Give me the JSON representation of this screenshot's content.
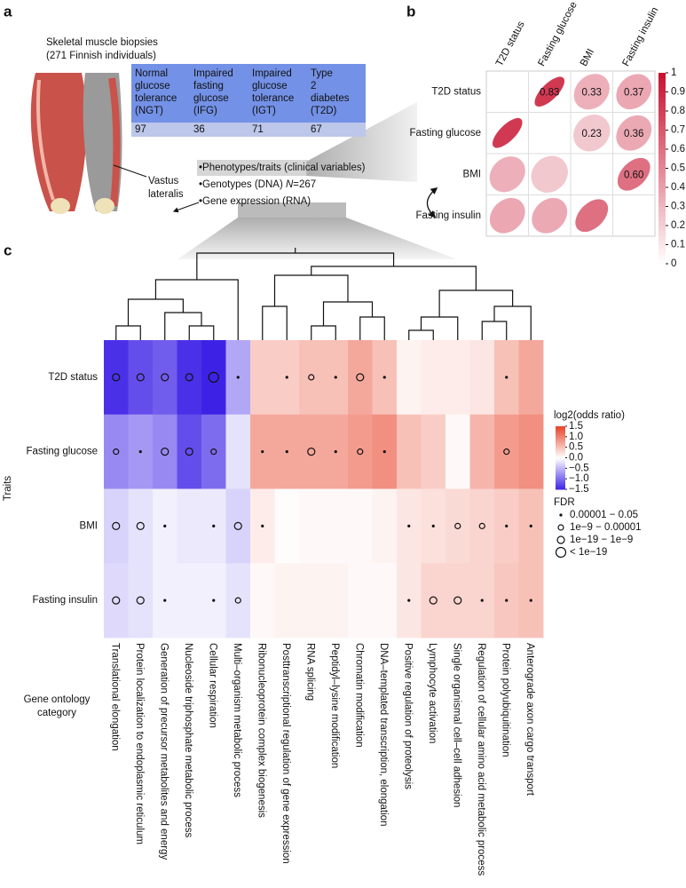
{
  "panel_labels": [
    "a",
    "b",
    "c"
  ],
  "panel_a": {
    "title_lines": [
      "Skeletal muscle biopsies",
      "(271 Finnish individuals)"
    ],
    "table": {
      "header": [
        [
          "Normal",
          "glucose",
          "tolerance",
          "(NGT)"
        ],
        [
          "Impaired",
          "fasting",
          "glucose",
          "(IFG)"
        ],
        [
          "Impaired",
          "glucose",
          "tolerance",
          "(IGT)"
        ],
        [
          "Type",
          "2",
          "diabetes",
          "(T2D)"
        ]
      ],
      "values": [
        97,
        36,
        71,
        67
      ]
    },
    "muscle_label": [
      "Vastus",
      "lateralis"
    ],
    "bullets": [
      {
        "text": "•Phenotypes/traits (clinical variables)"
      },
      {
        "text": "•Genotypes (DNA) ",
        "italic": "N",
        "suffix": "=267"
      },
      {
        "text": "•Gene expression (RNA)"
      }
    ]
  },
  "chart_data": [
    {
      "type": "correlation_matrix",
      "variables": [
        "T2D status",
        "Fasting glucose",
        "BMI",
        "Fasting insulin"
      ],
      "values": [
        [
          null,
          0.83,
          0.33,
          0.37
        ],
        [
          null,
          null,
          0.23,
          0.36
        ],
        [
          null,
          null,
          null,
          0.6
        ],
        [
          null,
          null,
          null,
          null
        ]
      ],
      "value_labels": [
        [
          null,
          "0.83",
          "0.33",
          "0.37"
        ],
        [
          null,
          null,
          "0.23",
          "0.36"
        ],
        [
          null,
          null,
          null,
          "0.60"
        ],
        [
          null,
          null,
          null,
          null
        ]
      ],
      "clim": [
        0,
        1
      ],
      "cticks": [
        0,
        0.1,
        0.2,
        0.3,
        0.4,
        0.5,
        0.6,
        0.7,
        0.8,
        0.9,
        1
      ]
    },
    {
      "type": "heatmap",
      "ylabel": "Traits",
      "xlabel_lines": [
        "Gene ontology",
        "category"
      ],
      "rows": [
        "T2D status",
        "Fasting glucose",
        "BMI",
        "Fasting insulin"
      ],
      "categories": [
        "Translational elongation",
        "Protein localization to endoplasmic reticulum",
        "Generation of precursor metabolites and energy",
        "Nucleoside triphosphate metabolic process",
        "Cellular respiration",
        "Multi–organism metabolic process",
        "Ribonucleoprotein complex biogenesis",
        "Posttranscriptional regulation of gene expression",
        "RNA splicing",
        "Peptidyl–lysine modification",
        "Chromatin modification",
        "DNA–templated transcription, elongation",
        "Positive regulation of proteolysis",
        "Lymphocyte activation",
        "Single organismal cell–cell adhesion",
        "Regulation of cellular amino acid metabolic process",
        "Protein polyubiquitination",
        "Anterograde axon cargo transport"
      ],
      "values": [
        [
          -1.4,
          -1.2,
          -1.1,
          -1.4,
          -1.5,
          -0.6,
          0.4,
          0.4,
          0.5,
          0.5,
          0.7,
          0.5,
          0.1,
          0.15,
          0.15,
          0.2,
          0.5,
          0.7
        ],
        [
          -0.8,
          -0.7,
          -0.8,
          -1.2,
          -1.0,
          -0.2,
          0.7,
          0.7,
          0.7,
          0.7,
          0.8,
          0.9,
          0.5,
          0.4,
          0.05,
          0.6,
          0.8,
          0.9
        ],
        [
          -0.3,
          -0.2,
          -0.1,
          -0.15,
          -0.15,
          -0.3,
          0.15,
          0.02,
          0.05,
          0.05,
          0.05,
          0.1,
          0.2,
          0.25,
          0.3,
          0.35,
          0.4,
          0.5
        ],
        [
          -0.25,
          -0.2,
          -0.1,
          -0.1,
          -0.1,
          -0.2,
          0.05,
          0.1,
          0.1,
          0.1,
          0.05,
          0.05,
          0.2,
          0.35,
          0.35,
          0.35,
          0.45,
          0.5
        ]
      ],
      "fdr": [
        [
          2,
          2,
          2,
          2,
          3,
          0,
          null,
          0,
          1,
          0,
          2,
          0,
          null,
          null,
          null,
          null,
          0,
          null
        ],
        [
          1,
          0,
          2,
          2,
          1,
          null,
          0,
          0,
          2,
          0,
          1,
          0,
          null,
          null,
          null,
          null,
          1,
          null
        ],
        [
          2,
          2,
          0,
          null,
          0,
          2,
          0,
          null,
          null,
          null,
          null,
          null,
          0,
          0,
          1,
          1,
          0,
          0
        ],
        [
          2,
          2,
          0,
          null,
          0,
          1,
          null,
          null,
          null,
          null,
          null,
          null,
          0,
          2,
          2,
          0,
          0,
          0
        ]
      ],
      "color_title": "log2(odds ratio)",
      "clim": [
        -1.5,
        1.5
      ],
      "cticks": [
        1.5,
        {
          "value": 1.0,
          "label": "1.0"
        },
        {
          "value": 0.5,
          "label": "0.5"
        },
        {
          "value": 0.0,
          "label": "0.0"
        },
        {
          "value": -0.5,
          "label": "−0.5"
        },
        {
          "value": -1.0,
          "label": "−1.0"
        },
        {
          "value": -1.5,
          "label": "−1.5"
        }
      ],
      "fdr_title": "FDR",
      "fdr_legend": [
        "0.00001 − 0.05",
        "1e−9 − 0.00001",
        "1e−19 − 1e−9",
        "< 1e−19"
      ]
    }
  ]
}
